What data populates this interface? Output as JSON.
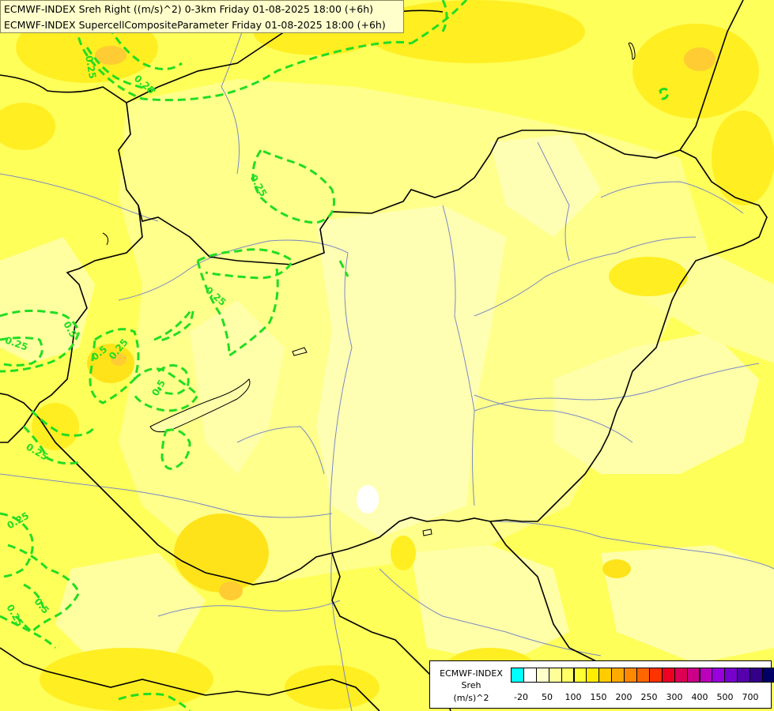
{
  "title": {
    "line1": "ECMWF-INDEX Sreh Right ((m/s)^2) 0-3km Friday 01-08-2025 18:00 (+6h)",
    "line2": "ECMWF-INDEX SupercellCompositeParameter Friday 01-08-2025 18:00 (+6h)"
  },
  "legend": {
    "line1": "ECMWF-INDEX",
    "line2": "Sreh",
    "line3": "(m/s)^2",
    "colors": [
      "#00ffff",
      "#ffffff",
      "#ffffcc",
      "#ffff99",
      "#ffff66",
      "#ffff33",
      "#ffee00",
      "#ffcc00",
      "#ffaa00",
      "#ff8800",
      "#ff6600",
      "#ff3300",
      "#ee0022",
      "#dd0055",
      "#cc0088",
      "#bb00bb",
      "#9900dd",
      "#7700cc",
      "#5500aa",
      "#330088",
      "#000066"
    ],
    "ticks": [
      "-20",
      "50",
      "100",
      "150",
      "200",
      "250",
      "300",
      "400",
      "500",
      "700"
    ]
  },
  "contours": {
    "labels": [
      "0.25",
      "0.25",
      "0.25",
      "0.25",
      "0.25",
      "0.25",
      "0.25",
      "0.25",
      "0.25",
      "0.5",
      "0.5",
      "0.5",
      "0.5"
    ],
    "color": "#22dd22"
  }
}
